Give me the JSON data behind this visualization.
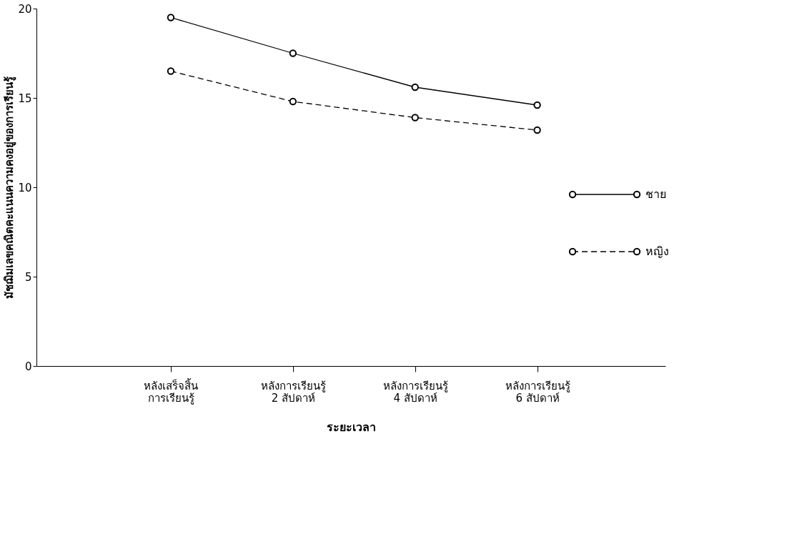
{
  "chart_data": {
    "type": "line",
    "xlabel": "ระยะเวลา",
    "ylabel": "มัชฌิมเลขคณิตคะแนนความคงอยู่ของการเรียนรู้",
    "categories": [
      "หลังเสร็จสิ้น\nการเรียนรู้",
      "หลังการเรียนรู้\n2 สัปดาห์",
      "หลังการเรียนรู้\n4 สัปดาห์",
      "หลังการเรียนรู้\n6 สัปดาห์"
    ],
    "series": [
      {
        "name": "ชาย",
        "color": "#000000",
        "line_style": "solid",
        "values": [
          19.5,
          17.5,
          15.6,
          14.6
        ]
      },
      {
        "name": "หญิง",
        "color": "#000000",
        "line_style": "dashed",
        "values": [
          16.5,
          14.8,
          13.9,
          13.2
        ]
      }
    ],
    "ylim": [
      0,
      20
    ],
    "yticks": [
      0,
      5,
      10,
      15,
      20
    ],
    "marker": "circle",
    "grid": false,
    "legend": "right"
  }
}
